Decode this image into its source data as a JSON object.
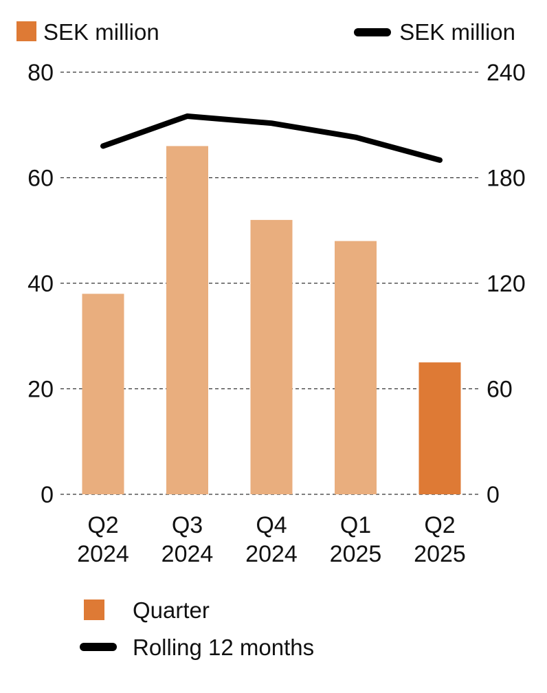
{
  "colors": {
    "bar_light": "#e9ae7e",
    "bar_highlight": "#de7a35",
    "line": "#000000",
    "grid": "#333333"
  },
  "chart_data": {
    "type": "bar",
    "legend_top": {
      "left_label": "SEK million",
      "right_label": "SEK million"
    },
    "categories": [
      [
        "Q2",
        "2024"
      ],
      [
        "Q3",
        "2024"
      ],
      [
        "Q4",
        "2024"
      ],
      [
        "Q1",
        "2025"
      ],
      [
        "Q2",
        "2025"
      ]
    ],
    "left_axis": {
      "ylim": [
        0,
        80
      ],
      "ticks": [
        "0",
        "20",
        "40",
        "60",
        "80"
      ]
    },
    "right_axis": {
      "ylim": [
        0,
        240
      ],
      "ticks": [
        "0",
        "60",
        "120",
        "180",
        "240"
      ]
    },
    "series": [
      {
        "name": "Quarter",
        "type": "bar",
        "axis": "left",
        "values": [
          38,
          66,
          52,
          48,
          25
        ],
        "highlight_index": 4
      },
      {
        "name": "Rolling 12 months",
        "type": "line",
        "axis": "right",
        "values": [
          198,
          215,
          211,
          203,
          190
        ]
      }
    ],
    "grid": true,
    "legend_position": "bottom-left"
  }
}
